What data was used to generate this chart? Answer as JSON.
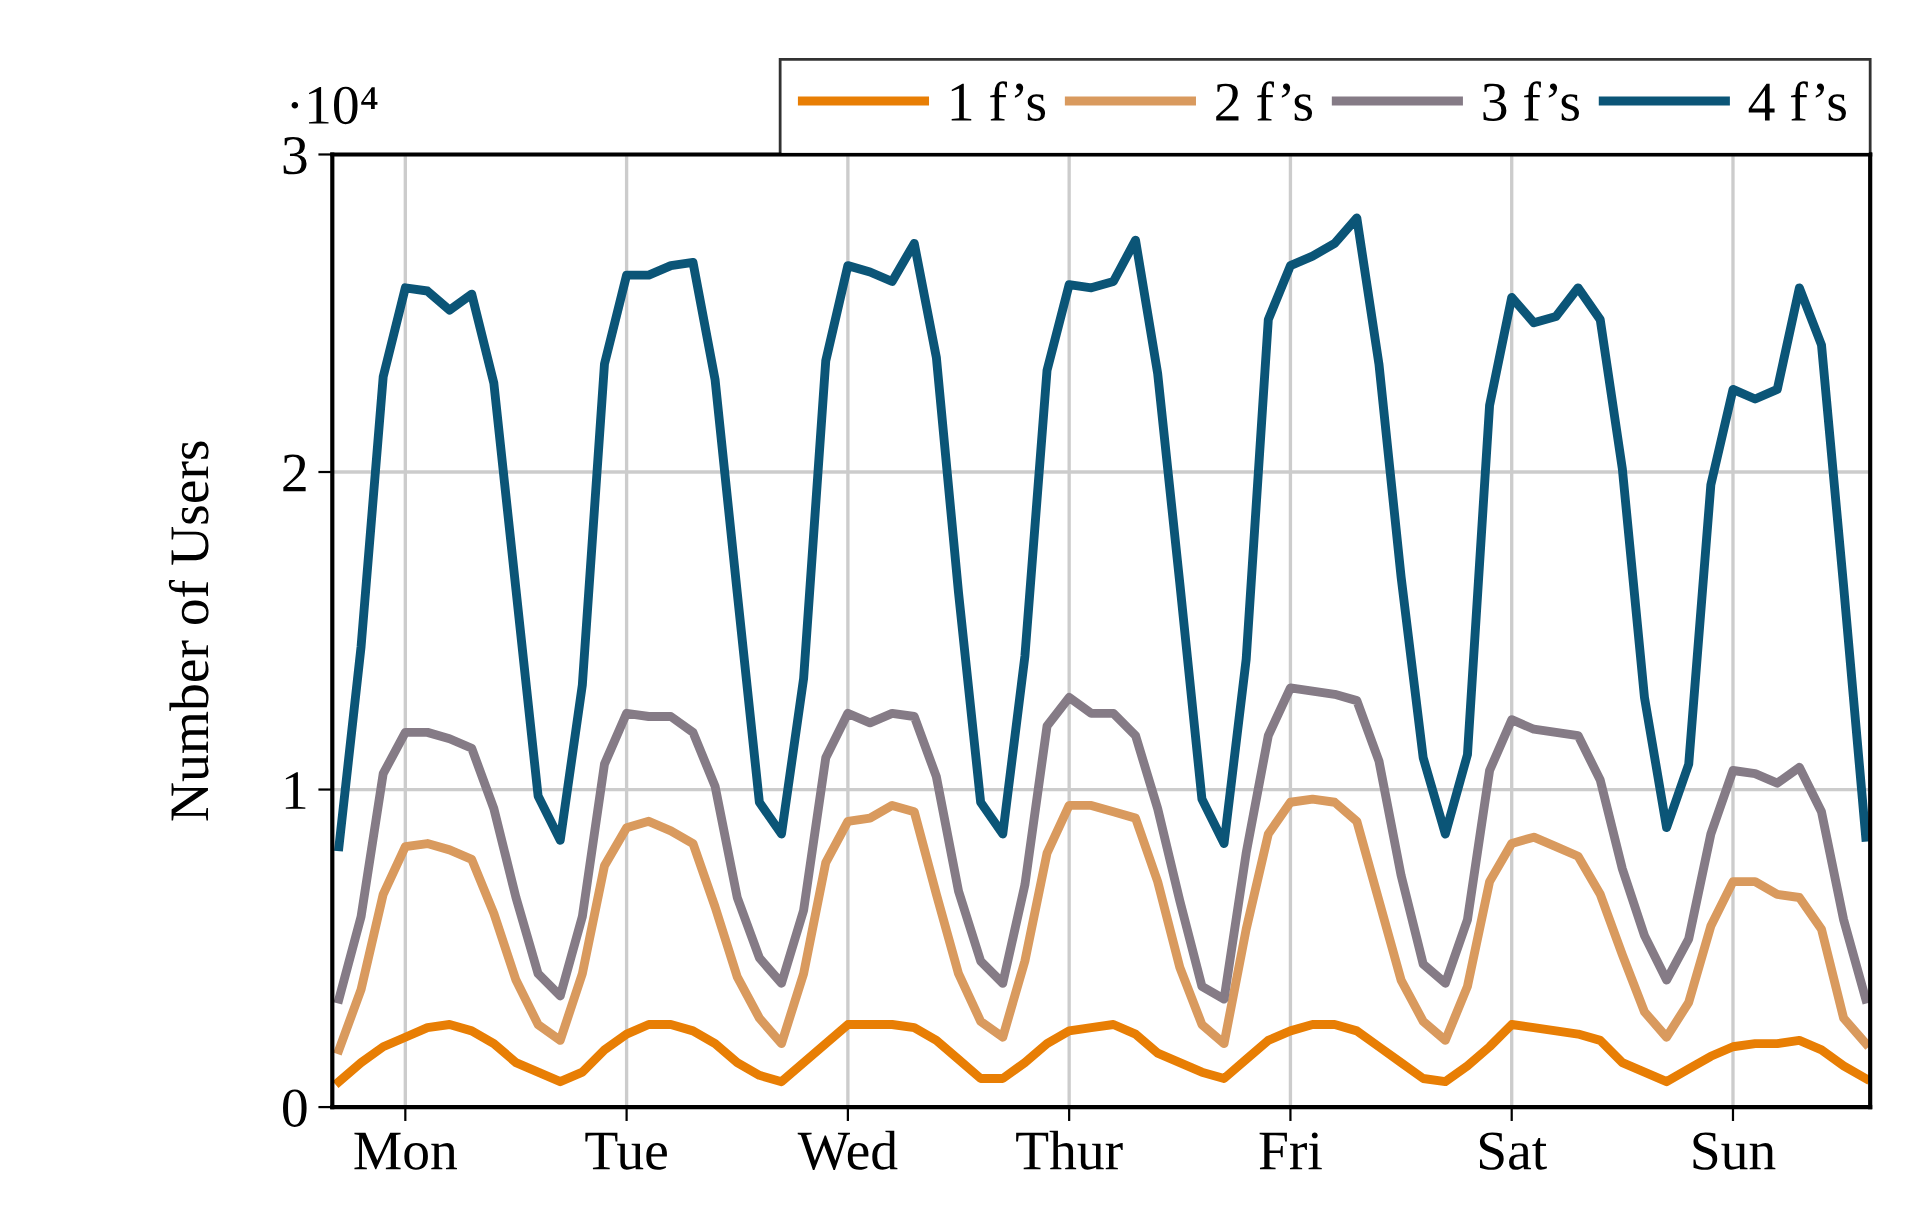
{
  "chart_data": {
    "type": "line",
    "ylabel": "Number of Users",
    "annotations": [
      "·10⁴"
    ],
    "categories": [
      null,
      null,
      null,
      "Mon",
      null,
      null,
      null,
      null,
      null,
      null,
      null,
      null,
      null,
      "Tue",
      null,
      null,
      null,
      null,
      null,
      null,
      null,
      null,
      null,
      "Wed",
      null,
      null,
      null,
      null,
      null,
      null,
      null,
      null,
      null,
      "Thur",
      null,
      null,
      null,
      null,
      null,
      null,
      null,
      null,
      null,
      "Fri",
      null,
      null,
      null,
      null,
      null,
      null,
      null,
      null,
      null,
      "Sat",
      null,
      null,
      null,
      null,
      null,
      null,
      null,
      null,
      null,
      "Sun",
      null,
      null,
      null,
      null,
      null,
      null
    ],
    "ylim": [
      0,
      3
    ],
    "yticks": [
      0,
      1,
      2,
      3
    ],
    "grid": true,
    "legend": "top right",
    "marker": "none",
    "line_style": "solid",
    "series": [
      {
        "name": "1 f’s",
        "color": "#e87e04",
        "values": [
          0.08,
          0.14,
          0.19,
          0.22,
          0.25,
          0.26,
          0.24,
          0.2,
          0.14,
          0.11,
          0.08,
          0.11,
          0.18,
          0.23,
          0.26,
          0.26,
          0.24,
          0.2,
          0.14,
          0.1,
          0.08,
          0.14,
          0.2,
          0.26,
          0.26,
          0.26,
          0.25,
          0.21,
          0.15,
          0.09,
          0.09,
          0.14,
          0.2,
          0.24,
          0.25,
          0.26,
          0.23,
          0.17,
          0.14,
          0.11,
          0.09,
          0.15,
          0.21,
          0.24,
          0.26,
          0.26,
          0.24,
          0.19,
          0.14,
          0.09,
          0.08,
          0.13,
          0.19,
          0.26,
          0.25,
          0.24,
          0.23,
          0.21,
          0.14,
          0.11,
          0.08,
          0.12,
          0.16,
          0.19,
          0.2,
          0.2,
          0.21,
          0.18,
          0.13,
          0.09
        ]
      },
      {
        "name": "2 f’s",
        "color": "#d99a5e",
        "values": [
          0.18,
          0.37,
          0.67,
          0.82,
          0.83,
          0.81,
          0.78,
          0.61,
          0.4,
          0.26,
          0.21,
          0.42,
          0.76,
          0.88,
          0.9,
          0.87,
          0.83,
          0.63,
          0.41,
          0.28,
          0.2,
          0.42,
          0.77,
          0.9,
          0.91,
          0.95,
          0.93,
          0.67,
          0.42,
          0.27,
          0.22,
          0.46,
          0.8,
          0.95,
          0.95,
          0.93,
          0.91,
          0.71,
          0.44,
          0.26,
          0.2,
          0.56,
          0.86,
          0.96,
          0.97,
          0.96,
          0.9,
          0.65,
          0.4,
          0.27,
          0.21,
          0.38,
          0.71,
          0.83,
          0.85,
          0.82,
          0.79,
          0.67,
          0.48,
          0.3,
          0.22,
          0.33,
          0.57,
          0.71,
          0.71,
          0.67,
          0.66,
          0.56,
          0.28,
          0.2
        ]
      },
      {
        "name": "3 f’s",
        "color": "#857b86",
        "values": [
          0.34,
          0.6,
          1.05,
          1.18,
          1.18,
          1.16,
          1.13,
          0.94,
          0.66,
          0.42,
          0.35,
          0.6,
          1.08,
          1.24,
          1.23,
          1.23,
          1.18,
          1.01,
          0.66,
          0.47,
          0.39,
          0.62,
          1.1,
          1.24,
          1.21,
          1.24,
          1.23,
          1.04,
          0.68,
          0.46,
          0.39,
          0.7,
          1.2,
          1.29,
          1.24,
          1.24,
          1.17,
          0.94,
          0.65,
          0.38,
          0.34,
          0.8,
          1.17,
          1.32,
          1.31,
          1.3,
          1.28,
          1.09,
          0.73,
          0.45,
          0.39,
          0.59,
          1.06,
          1.22,
          1.19,
          1.18,
          1.17,
          1.03,
          0.75,
          0.54,
          0.4,
          0.53,
          0.86,
          1.06,
          1.05,
          1.02,
          1.07,
          0.93,
          0.59,
          0.34
        ]
      },
      {
        "name": "4 f’s",
        "color": "#0b5577",
        "values": [
          0.82,
          1.45,
          2.3,
          2.58,
          2.57,
          2.51,
          2.56,
          2.28,
          1.63,
          0.98,
          0.84,
          1.33,
          2.34,
          2.62,
          2.62,
          2.65,
          2.66,
          2.29,
          1.62,
          0.96,
          0.86,
          1.35,
          2.35,
          2.65,
          2.63,
          2.6,
          2.72,
          2.36,
          1.62,
          0.96,
          0.86,
          1.42,
          2.32,
          2.59,
          2.58,
          2.6,
          2.73,
          2.31,
          1.65,
          0.97,
          0.83,
          1.41,
          2.48,
          2.65,
          2.68,
          2.72,
          2.8,
          2.34,
          1.67,
          1.1,
          0.86,
          1.11,
          2.21,
          2.55,
          2.47,
          2.49,
          2.58,
          2.48,
          2.01,
          1.29,
          0.88,
          1.08,
          1.96,
          2.26,
          2.23,
          2.26,
          2.58,
          2.4,
          1.64,
          0.85
        ]
      }
    ]
  }
}
